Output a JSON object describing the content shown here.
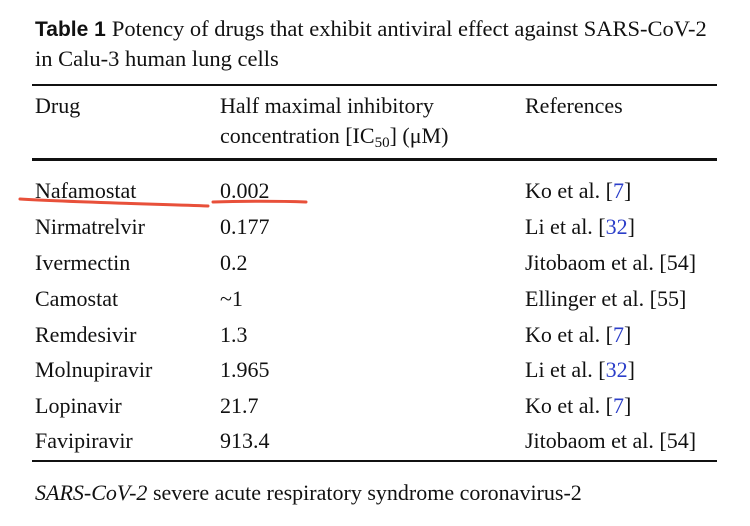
{
  "caption": {
    "label": "Table 1",
    "text": "Potency of drugs that exhibit antiviral effect against SARS-CoV-2 in Calu-3 human lung cells"
  },
  "headers": {
    "drug": "Drug",
    "ic_line1": "Half maximal inhibitory",
    "ic_line2_pre": "concentration [IC",
    "ic_sub": "50",
    "ic_line2_post": "] (μM)",
    "references": "References"
  },
  "rows": [
    {
      "drug": "Nafamostat",
      "ic50": "0.002",
      "ref_text": "Ko et al. [",
      "ref_num": "7",
      "ref_close": "]"
    },
    {
      "drug": "Nirmatrelvir",
      "ic50": "0.177",
      "ref_text": "Li et al. [",
      "ref_num": "32",
      "ref_close": "]"
    },
    {
      "drug": "Ivermectin",
      "ic50": "0.2",
      "ref_text": "Jitobaom et al. [54]",
      "ref_num": "",
      "ref_close": ""
    },
    {
      "drug": "Camostat",
      "ic50": "~1",
      "ref_text": "Ellinger et al. [55]",
      "ref_num": "",
      "ref_close": ""
    },
    {
      "drug": "Remdesivir",
      "ic50": "1.3",
      "ref_text": "Ko et al. [",
      "ref_num": "7",
      "ref_close": "]"
    },
    {
      "drug": "Molnupiravir",
      "ic50": "1.965",
      "ref_text": "Li et al. [",
      "ref_num": "32",
      "ref_close": "]"
    },
    {
      "drug": "Lopinavir",
      "ic50": "21.7",
      "ref_text": "Ko et al. [",
      "ref_num": "7",
      "ref_close": "]"
    },
    {
      "drug": "Favipiravir",
      "ic50": "913.4",
      "ref_text": "Jitobaom et al. [54]",
      "ref_num": "",
      "ref_close": ""
    }
  ],
  "footnote": {
    "term": "SARS-CoV-2",
    "definition": " severe acute respiratory syndrome coronavirus-2"
  },
  "colors": {
    "citation_link": "#2b3ec9",
    "annotation_stroke": "#e8503a"
  }
}
